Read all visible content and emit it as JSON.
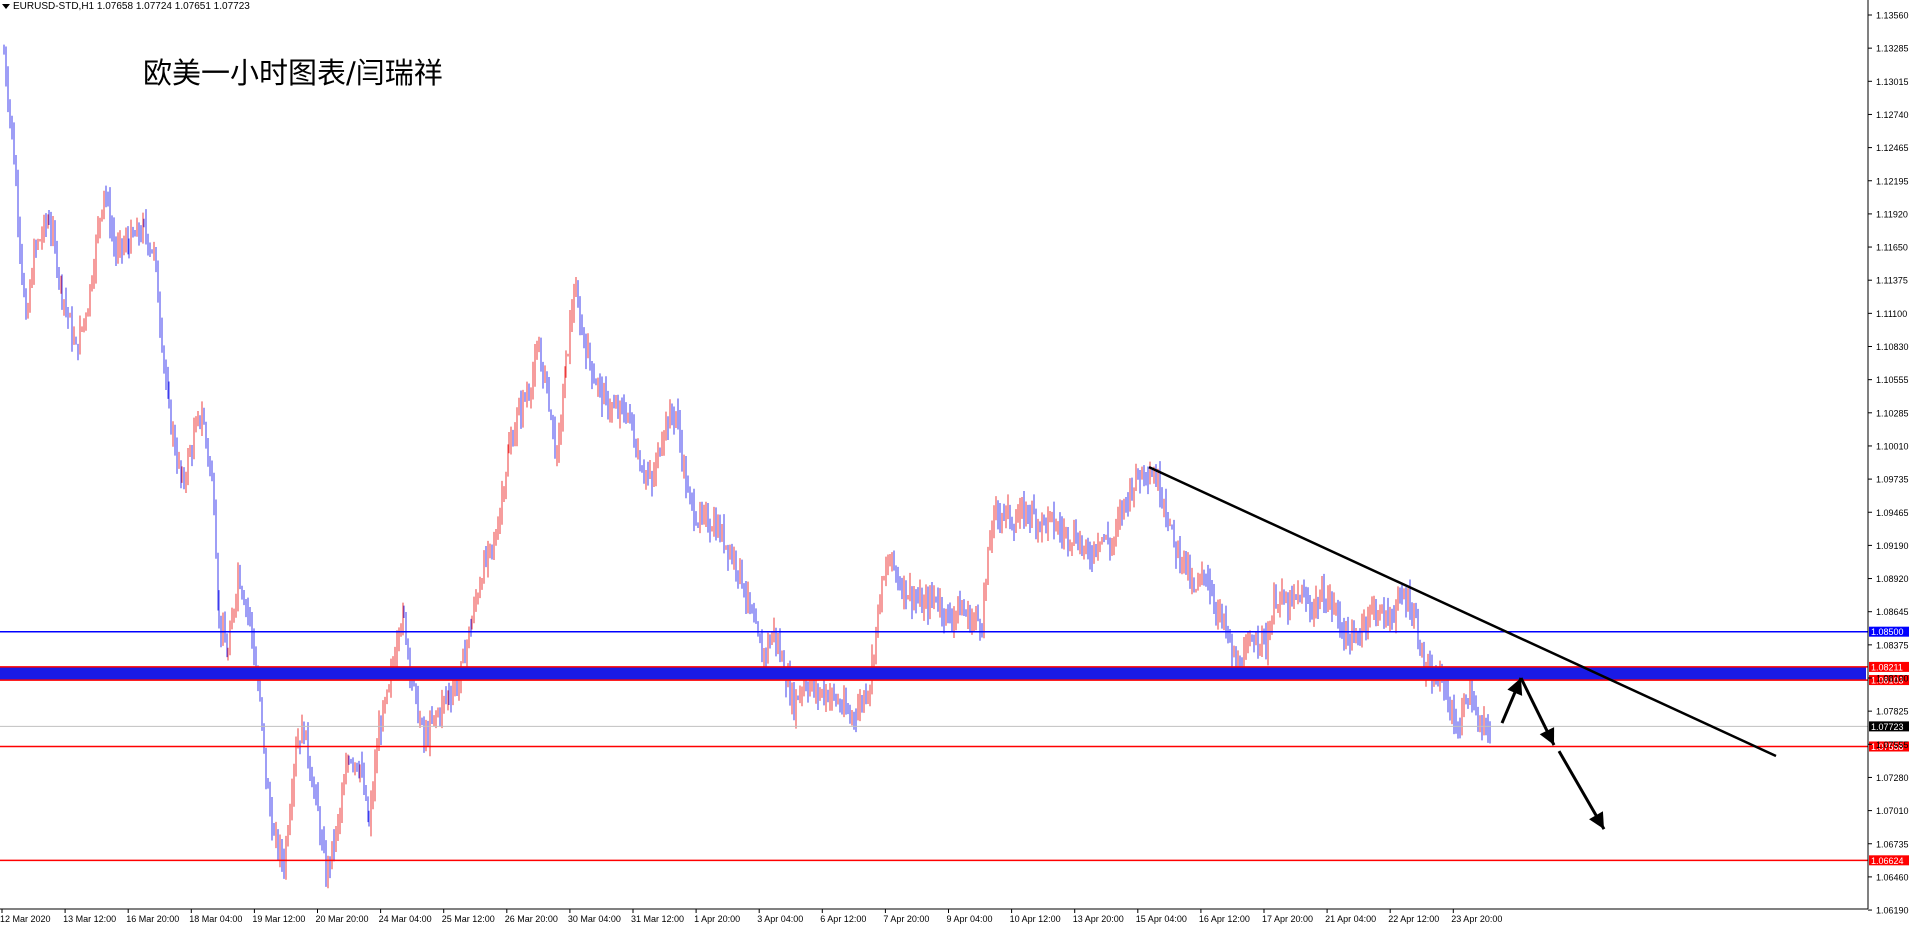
{
  "header": {
    "symbol": "EURUSD-STD,H1",
    "ohlc": "1.07658 1.07724 1.07651 1.07723"
  },
  "watermark": "欧美一小时图表/闫瑞祥",
  "colors": {
    "bull": "#ee3b3b",
    "bear": "#3c3cee",
    "resistance": "#0000ff",
    "support": "#ff0000",
    "trendline": "#000000",
    "zone": "#1a1ae6",
    "current": "#000000"
  },
  "chart_data": {
    "type": "candlestick",
    "instrument": "EURUSD-STD",
    "timeframe": "H1",
    "y_ticks": [
      "1.13560",
      "1.13285",
      "1.13015",
      "1.12740",
      "1.12465",
      "1.12195",
      "1.11920",
      "1.11650",
      "1.11375",
      "1.11100",
      "1.10830",
      "1.10555",
      "1.10285",
      "1.10010",
      "1.09735",
      "1.09465",
      "1.09190",
      "1.08920",
      "1.08645",
      "1.08375",
      "1.08100",
      "1.07825",
      "1.07555",
      "1.07280",
      "1.07010",
      "1.06735",
      "1.06460",
      "1.06190"
    ],
    "x_ticks": [
      "12 Mar 2020",
      "13 Mar 12:00",
      "16 Mar 20:00",
      "18 Mar 04:00",
      "19 Mar 12:00",
      "20 Mar 20:00",
      "24 Mar 04:00",
      "25 Mar 12:00",
      "26 Mar 20:00",
      "30 Mar 04:00",
      "31 Mar 12:00",
      "1 Apr 20:00",
      "3 Apr 04:00",
      "6 Apr 12:00",
      "7 Apr 20:00",
      "9 Apr 04:00",
      "10 Apr 12:00",
      "13 Apr 20:00",
      "15 Apr 04:00",
      "16 Apr 12:00",
      "17 Apr 20:00",
      "21 Apr 04:00",
      "22 Apr 12:00",
      "23 Apr 20:00"
    ],
    "price_path": [
      [
        0,
        1.1325
      ],
      [
        10,
        1.124
      ],
      [
        22,
        1.11
      ],
      [
        30,
        1.116
      ],
      [
        45,
        1.119
      ],
      [
        58,
        1.113
      ],
      [
        72,
        1.108
      ],
      [
        84,
        1.112
      ],
      [
        100,
        1.1215
      ],
      [
        112,
        1.116
      ],
      [
        125,
        1.117
      ],
      [
        140,
        1.118
      ],
      [
        150,
        1.116
      ],
      [
        165,
        1.103
      ],
      [
        178,
        1.097
      ],
      [
        190,
        1.101
      ],
      [
        198,
        1.103
      ],
      [
        210,
        1.096
      ],
      [
        215,
        1.086
      ],
      [
        224,
        1.083
      ],
      [
        234,
        1.09
      ],
      [
        246,
        1.086
      ],
      [
        256,
        1.079
      ],
      [
        262,
        1.073
      ],
      [
        270,
        1.068
      ],
      [
        280,
        1.066
      ],
      [
        292,
        1.076
      ],
      [
        300,
        1.077
      ],
      [
        314,
        1.07
      ],
      [
        322,
        1.065
      ],
      [
        334,
        1.069
      ],
      [
        345,
        1.075
      ],
      [
        356,
        1.074
      ],
      [
        365,
        1.069
      ],
      [
        375,
        1.077
      ],
      [
        385,
        1.08
      ],
      [
        395,
        1.086
      ],
      [
        400,
        1.086
      ],
      [
        410,
        1.08
      ],
      [
        420,
        1.076
      ],
      [
        432,
        1.078
      ],
      [
        445,
        1.08
      ],
      [
        455,
        1.081
      ],
      [
        468,
        1.086
      ],
      [
        478,
        1.09
      ],
      [
        490,
        1.092
      ],
      [
        505,
        1.1
      ],
      [
        515,
        1.103
      ],
      [
        525,
        1.105
      ],
      [
        535,
        1.108
      ],
      [
        545,
        1.104
      ],
      [
        553,
        1.099
      ],
      [
        562,
        1.107
      ],
      [
        570,
        1.113
      ],
      [
        580,
        1.109
      ],
      [
        590,
        1.106
      ],
      [
        600,
        1.104
      ],
      [
        612,
        1.103
      ],
      [
        624,
        1.103
      ],
      [
        636,
        1.099
      ],
      [
        648,
        1.097
      ],
      [
        660,
        1.102
      ],
      [
        672,
        1.103
      ],
      [
        684,
        1.096
      ],
      [
        696,
        1.094
      ],
      [
        710,
        1.094
      ],
      [
        724,
        1.092
      ],
      [
        736,
        1.09
      ],
      [
        748,
        1.086
      ],
      [
        758,
        1.083
      ],
      [
        770,
        1.085
      ],
      [
        780,
        1.082
      ],
      [
        790,
        1.079
      ],
      [
        800,
        1.081
      ],
      [
        812,
        1.08
      ],
      [
        824,
        1.08
      ],
      [
        836,
        1.079
      ],
      [
        846,
        1.078
      ],
      [
        856,
        1.079
      ],
      [
        866,
        1.081
      ],
      [
        876,
        1.088
      ],
      [
        886,
        1.091
      ],
      [
        896,
        1.089
      ],
      [
        908,
        1.088
      ],
      [
        920,
        1.087
      ],
      [
        932,
        1.088
      ],
      [
        944,
        1.086
      ],
      [
        956,
        1.087
      ],
      [
        966,
        1.086
      ],
      [
        978,
        1.086
      ],
      [
        988,
        1.094
      ],
      [
        998,
        1.095
      ],
      [
        1010,
        1.094
      ],
      [
        1024,
        1.095
      ],
      [
        1036,
        1.094
      ],
      [
        1048,
        1.094
      ],
      [
        1060,
        1.093
      ],
      [
        1072,
        1.093
      ],
      [
        1084,
        1.091
      ],
      [
        1096,
        1.093
      ],
      [
        1108,
        1.092
      ],
      [
        1118,
        1.095
      ],
      [
        1128,
        1.097
      ],
      [
        1140,
        1.0985
      ],
      [
        1150,
        1.098
      ],
      [
        1160,
        1.096
      ],
      [
        1170,
        1.092
      ],
      [
        1180,
        1.091
      ],
      [
        1190,
        1.088
      ],
      [
        1202,
        1.09
      ],
      [
        1212,
        1.087
      ],
      [
        1222,
        1.085
      ],
      [
        1232,
        1.082
      ],
      [
        1242,
        1.083
      ],
      [
        1252,
        1.085
      ],
      [
        1262,
        1.084
      ],
      [
        1272,
        1.088
      ],
      [
        1284,
        1.087
      ],
      [
        1296,
        1.088
      ],
      [
        1308,
        1.087
      ],
      [
        1320,
        1.088
      ],
      [
        1330,
        1.087
      ],
      [
        1340,
        1.085
      ],
      [
        1350,
        1.084
      ],
      [
        1360,
        1.086
      ],
      [
        1370,
        1.087
      ],
      [
        1382,
        1.086
      ],
      [
        1392,
        1.087
      ],
      [
        1402,
        1.088
      ],
      [
        1412,
        1.086
      ],
      [
        1420,
        1.082
      ],
      [
        1430,
        1.081
      ],
      [
        1440,
        1.081
      ],
      [
        1448,
        1.078
      ],
      [
        1456,
        1.077
      ],
      [
        1462,
        1.08
      ],
      [
        1468,
        1.08
      ],
      [
        1474,
        1.077
      ],
      [
        1480,
        1.077
      ],
      [
        1488,
        1.0772
      ]
    ],
    "lines": [
      {
        "label": "1.08500",
        "price": 1.085,
        "kind": "resistance"
      },
      {
        "label": "1.08211",
        "price": 1.08211,
        "kind": "support"
      },
      {
        "label": "1.08103",
        "price": 1.08103,
        "kind": "support"
      },
      {
        "label": "1.07558",
        "price": 1.07558,
        "kind": "support"
      },
      {
        "label": "1.06624",
        "price": 1.06624,
        "kind": "support"
      }
    ],
    "zone": {
      "from": 1.08103,
      "to": 1.08211
    },
    "current_price": {
      "label": "1.07723",
      "price": 1.07723
    },
    "trendline": {
      "from": {
        "i": 1145,
        "price": 1.0985
      },
      "to": {
        "i": 1772,
        "price": 1.0748
      }
    },
    "arrows": [
      {
        "from": {
          "i": 1498,
          "price": 1.0775
        },
        "to": {
          "i": 1517,
          "price": 1.0812
        }
      },
      {
        "from": {
          "i": 1517,
          "price": 1.0812
        },
        "to": {
          "i": 1550,
          "price": 1.0757
        }
      },
      {
        "from": {
          "i": 1555,
          "price": 1.0752
        },
        "to": {
          "i": 1600,
          "price": 1.0688
        }
      }
    ]
  }
}
